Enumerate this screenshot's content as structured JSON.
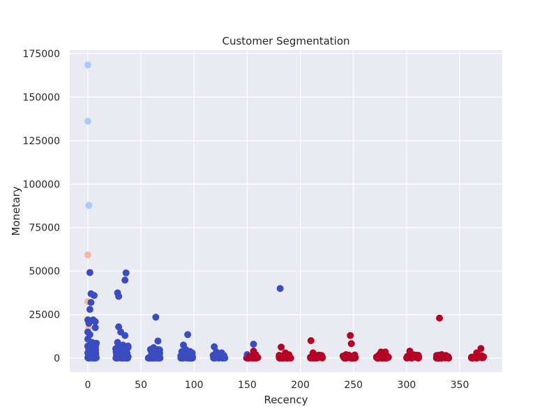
{
  "chart_data": {
    "type": "scatter",
    "title": "Customer Segmentation",
    "xlabel": "Recency",
    "ylabel": "Monetary",
    "xlim": [
      -17,
      390
    ],
    "ylim": [
      -8000,
      177000
    ],
    "xticks": [
      0,
      50,
      100,
      150,
      200,
      250,
      300,
      350
    ],
    "yticks": [
      0,
      25000,
      50000,
      75000,
      100000,
      125000,
      150000,
      175000
    ],
    "grid": true,
    "legend": "none",
    "cluster_colors": [
      "#3b4cc0",
      "#b40426",
      "#aec9fd",
      "#f5b99d"
    ],
    "points": [
      {
        "x": 0,
        "y": 168500,
        "c": 2
      },
      {
        "x": 0,
        "y": 136200,
        "c": 2
      },
      {
        "x": 1,
        "y": 87800,
        "c": 2
      },
      {
        "x": 0,
        "y": 59300,
        "c": 3
      },
      {
        "x": 0,
        "y": 32500,
        "c": 3
      },
      {
        "x": 1,
        "y": 17300,
        "c": 3
      },
      {
        "x": 2,
        "y": 49200,
        "c": 0
      },
      {
        "x": 3,
        "y": 37000,
        "c": 0
      },
      {
        "x": 6,
        "y": 36000,
        "c": 0
      },
      {
        "x": 3,
        "y": 32000,
        "c": 0
      },
      {
        "x": 2,
        "y": 28000,
        "c": 0
      },
      {
        "x": 0,
        "y": 22000,
        "c": 0
      },
      {
        "x": 1,
        "y": 20000,
        "c": 0
      },
      {
        "x": 5,
        "y": 22000,
        "c": 0
      },
      {
        "x": 7,
        "y": 21000,
        "c": 0
      },
      {
        "x": 7,
        "y": 17500,
        "c": 0
      },
      {
        "x": 0,
        "y": 15000,
        "c": 0
      },
      {
        "x": 2,
        "y": 13500,
        "c": 0
      },
      {
        "x": 0,
        "y": 11000,
        "c": 0
      },
      {
        "x": 4,
        "y": 9000,
        "c": 0
      },
      {
        "x": 8,
        "y": 8500,
        "c": 0
      },
      {
        "x": 1,
        "y": 7000,
        "c": 0
      },
      {
        "x": 3,
        "y": 5500,
        "c": 0
      },
      {
        "x": 6,
        "y": 4000,
        "c": 0
      },
      {
        "x": 0,
        "y": 3000,
        "c": 0
      },
      {
        "x": 2,
        "y": 2000,
        "c": 0
      },
      {
        "x": 5,
        "y": 1500,
        "c": 0
      },
      {
        "x": 7,
        "y": 800,
        "c": 0
      },
      {
        "x": 1,
        "y": 400,
        "c": 0
      },
      {
        "x": 4,
        "y": 200,
        "c": 0
      },
      {
        "x": 28,
        "y": 37500,
        "c": 0
      },
      {
        "x": 29,
        "y": 35500,
        "c": 0
      },
      {
        "x": 36,
        "y": 49000,
        "c": 0
      },
      {
        "x": 35,
        "y": 44800,
        "c": 0
      },
      {
        "x": 29,
        "y": 18000,
        "c": 0
      },
      {
        "x": 31,
        "y": 15000,
        "c": 0
      },
      {
        "x": 35,
        "y": 13000,
        "c": 0
      },
      {
        "x": 28,
        "y": 9000,
        "c": 0
      },
      {
        "x": 33,
        "y": 7500,
        "c": 0
      },
      {
        "x": 37,
        "y": 6000,
        "c": 0
      },
      {
        "x": 30,
        "y": 4500,
        "c": 0
      },
      {
        "x": 34,
        "y": 3000,
        "c": 0
      },
      {
        "x": 27,
        "y": 2000,
        "c": 0
      },
      {
        "x": 32,
        "y": 1200,
        "c": 0
      },
      {
        "x": 36,
        "y": 600,
        "c": 0
      },
      {
        "x": 29,
        "y": 200,
        "c": 0
      },
      {
        "x": 64,
        "y": 23500,
        "c": 0
      },
      {
        "x": 66,
        "y": 9800,
        "c": 0
      },
      {
        "x": 62,
        "y": 6000,
        "c": 0
      },
      {
        "x": 59,
        "y": 5000,
        "c": 0
      },
      {
        "x": 65,
        "y": 3500,
        "c": 0
      },
      {
        "x": 60,
        "y": 2000,
        "c": 0
      },
      {
        "x": 63,
        "y": 1000,
        "c": 0
      },
      {
        "x": 67,
        "y": 400,
        "c": 0
      },
      {
        "x": 94,
        "y": 13500,
        "c": 0
      },
      {
        "x": 90,
        "y": 7500,
        "c": 0
      },
      {
        "x": 92,
        "y": 5000,
        "c": 0
      },
      {
        "x": 96,
        "y": 3500,
        "c": 0
      },
      {
        "x": 89,
        "y": 2000,
        "c": 0
      },
      {
        "x": 95,
        "y": 1000,
        "c": 0
      },
      {
        "x": 98,
        "y": 300,
        "c": 0
      },
      {
        "x": 119,
        "y": 6500,
        "c": 0
      },
      {
        "x": 121,
        "y": 3500,
        "c": 0
      },
      {
        "x": 126,
        "y": 3000,
        "c": 0
      },
      {
        "x": 128,
        "y": 1500,
        "c": 0
      },
      {
        "x": 123,
        "y": 600,
        "c": 0
      },
      {
        "x": 156,
        "y": 8000,
        "c": 0
      },
      {
        "x": 181,
        "y": 40000,
        "c": 0
      },
      {
        "x": 150,
        "y": 2000,
        "c": 0
      },
      {
        "x": 152,
        "y": 1000,
        "c": 1
      },
      {
        "x": 156,
        "y": 4000,
        "c": 1
      },
      {
        "x": 158,
        "y": 2000,
        "c": 1
      },
      {
        "x": 154,
        "y": 500,
        "c": 1
      },
      {
        "x": 160,
        "y": 300,
        "c": 1
      },
      {
        "x": 182,
        "y": 6300,
        "c": 1
      },
      {
        "x": 186,
        "y": 3000,
        "c": 1
      },
      {
        "x": 188,
        "y": 1500,
        "c": 1
      },
      {
        "x": 184,
        "y": 700,
        "c": 1
      },
      {
        "x": 190,
        "y": 300,
        "c": 1
      },
      {
        "x": 210,
        "y": 10000,
        "c": 1
      },
      {
        "x": 212,
        "y": 3000,
        "c": 1
      },
      {
        "x": 216,
        "y": 1500,
        "c": 1
      },
      {
        "x": 220,
        "y": 600,
        "c": 1
      },
      {
        "x": 214,
        "y": 200,
        "c": 1
      },
      {
        "x": 247,
        "y": 13000,
        "c": 1
      },
      {
        "x": 248,
        "y": 8300,
        "c": 1
      },
      {
        "x": 243,
        "y": 2000,
        "c": 1
      },
      {
        "x": 246,
        "y": 1000,
        "c": 1
      },
      {
        "x": 250,
        "y": 400,
        "c": 1
      },
      {
        "x": 276,
        "y": 3500,
        "c": 1
      },
      {
        "x": 280,
        "y": 3500,
        "c": 1
      },
      {
        "x": 274,
        "y": 1800,
        "c": 1
      },
      {
        "x": 278,
        "y": 900,
        "c": 1
      },
      {
        "x": 282,
        "y": 300,
        "c": 1
      },
      {
        "x": 303,
        "y": 4000,
        "c": 1
      },
      {
        "x": 306,
        "y": 2000,
        "c": 1
      },
      {
        "x": 309,
        "y": 900,
        "c": 1
      },
      {
        "x": 301,
        "y": 300,
        "c": 1
      },
      {
        "x": 331,
        "y": 23000,
        "c": 1
      },
      {
        "x": 333,
        "y": 2000,
        "c": 1
      },
      {
        "x": 337,
        "y": 1500,
        "c": 1
      },
      {
        "x": 330,
        "y": 700,
        "c": 1
      },
      {
        "x": 335,
        "y": 300,
        "c": 1
      },
      {
        "x": 370,
        "y": 5500,
        "c": 1
      },
      {
        "x": 366,
        "y": 3000,
        "c": 1
      },
      {
        "x": 368,
        "y": 1500,
        "c": 1
      },
      {
        "x": 364,
        "y": 600,
        "c": 1
      },
      {
        "x": 371,
        "y": 250,
        "c": 1
      }
    ],
    "dense_bands": [
      {
        "x0": 0,
        "x1": 8,
        "ymax": 8500,
        "count": 60,
        "c": 0
      },
      {
        "x0": 26,
        "x1": 38,
        "ymax": 7000,
        "count": 60,
        "c": 0
      },
      {
        "x0": 57,
        "x1": 68,
        "ymax": 5000,
        "count": 45,
        "c": 0
      },
      {
        "x0": 87,
        "x1": 99,
        "ymax": 4200,
        "count": 40,
        "c": 0
      },
      {
        "x0": 118,
        "x1": 129,
        "ymax": 2500,
        "count": 25,
        "c": 0
      },
      {
        "x0": 149,
        "x1": 160,
        "ymax": 1800,
        "count": 25,
        "c": 1
      },
      {
        "x0": 179,
        "x1": 191,
        "ymax": 2500,
        "count": 30,
        "c": 1
      },
      {
        "x0": 209,
        "x1": 221,
        "ymax": 1800,
        "count": 25,
        "c": 1
      },
      {
        "x0": 240,
        "x1": 252,
        "ymax": 1800,
        "count": 25,
        "c": 1
      },
      {
        "x0": 271,
        "x1": 283,
        "ymax": 2200,
        "count": 30,
        "c": 1
      },
      {
        "x0": 300,
        "x1": 312,
        "ymax": 2000,
        "count": 25,
        "c": 1
      },
      {
        "x0": 328,
        "x1": 340,
        "ymax": 1800,
        "count": 25,
        "c": 1
      },
      {
        "x0": 361,
        "x1": 373,
        "ymax": 2000,
        "count": 25,
        "c": 1
      }
    ]
  }
}
